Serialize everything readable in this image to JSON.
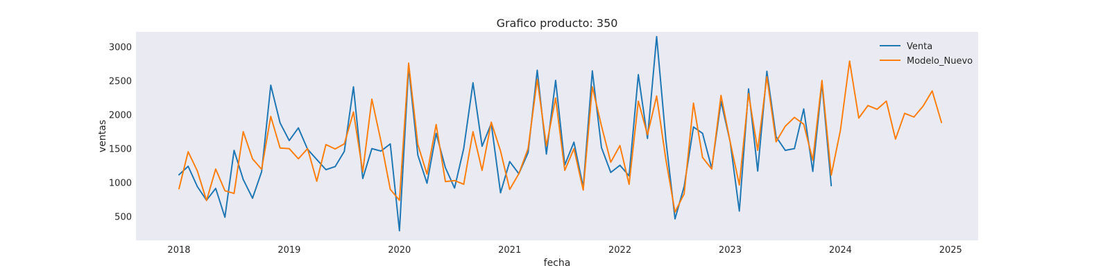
{
  "chart_data": {
    "type": "line",
    "title": "Grafico producto: 350",
    "xlabel": "fecha",
    "ylabel": "ventas",
    "xlim": [
      2017.61,
      2025.25
    ],
    "ylim": [
      150,
      3220
    ],
    "x_ticks": [
      2018,
      2019,
      2020,
      2021,
      2022,
      2023,
      2024,
      2025
    ],
    "x_tick_labels": [
      "2018",
      "2019",
      "2020",
      "2021",
      "2022",
      "2023",
      "2024",
      "2025"
    ],
    "y_ticks": [
      500,
      1000,
      1500,
      2000,
      2500,
      3000
    ],
    "y_tick_labels": [
      "500",
      "1000",
      "1500",
      "2000",
      "2500",
      "3000"
    ],
    "grid": false,
    "background": "#eaeaf2",
    "legend": "top-right",
    "series": [
      {
        "name": "Venta",
        "color": "#1f77b4",
        "x": [
          2018.0,
          2018.083,
          2018.167,
          2018.25,
          2018.333,
          2018.417,
          2018.5,
          2018.583,
          2018.667,
          2018.75,
          2018.833,
          2018.917,
          2019.0,
          2019.083,
          2019.167,
          2019.25,
          2019.333,
          2019.417,
          2019.5,
          2019.583,
          2019.667,
          2019.75,
          2019.833,
          2019.917,
          2020.0,
          2020.083,
          2020.167,
          2020.25,
          2020.333,
          2020.417,
          2020.5,
          2020.583,
          2020.667,
          2020.75,
          2020.833,
          2020.917,
          2021.0,
          2021.083,
          2021.167,
          2021.25,
          2021.333,
          2021.417,
          2021.5,
          2021.583,
          2021.667,
          2021.75,
          2021.833,
          2021.917,
          2022.0,
          2022.083,
          2022.167,
          2022.25,
          2022.333,
          2022.417,
          2022.5,
          2022.583,
          2022.667,
          2022.75,
          2022.833,
          2022.917,
          2023.0,
          2023.083,
          2023.167,
          2023.25,
          2023.333,
          2023.417,
          2023.5,
          2023.583,
          2023.667,
          2023.75,
          2023.833,
          2023.917
        ],
        "values": [
          1115,
          1240,
          940,
          740,
          915,
          490,
          1475,
          1045,
          770,
          1160,
          2435,
          1880,
          1620,
          1805,
          1490,
          1340,
          1190,
          1235,
          1460,
          2410,
          1060,
          1500,
          1465,
          1570,
          290,
          2700,
          1405,
          990,
          1725,
          1220,
          920,
          1500,
          2470,
          1535,
          1870,
          850,
          1310,
          1130,
          1440,
          2655,
          1420,
          2505,
          1260,
          1595,
          930,
          2645,
          1515,
          1150,
          1255,
          1100,
          2590,
          1650,
          3150,
          1630,
          465,
          945,
          1820,
          1725,
          1210,
          2195,
          1600,
          580,
          2380,
          1170,
          2640,
          1675,
          1475,
          1500,
          2085,
          1165,
          2465,
          955
        ]
      },
      {
        "name": "Modelo_Nuevo",
        "color": "#ff7f0e",
        "x": [
          2018.0,
          2018.083,
          2018.167,
          2018.25,
          2018.333,
          2018.417,
          2018.5,
          2018.583,
          2018.667,
          2018.75,
          2018.833,
          2018.917,
          2019.0,
          2019.083,
          2019.167,
          2019.25,
          2019.333,
          2019.417,
          2019.5,
          2019.583,
          2019.667,
          2019.75,
          2019.833,
          2019.917,
          2020.0,
          2020.083,
          2020.167,
          2020.25,
          2020.333,
          2020.417,
          2020.5,
          2020.583,
          2020.667,
          2020.75,
          2020.833,
          2020.917,
          2021.0,
          2021.083,
          2021.167,
          2021.25,
          2021.333,
          2021.417,
          2021.5,
          2021.583,
          2021.667,
          2021.75,
          2021.833,
          2021.917,
          2022.0,
          2022.083,
          2022.167,
          2022.25,
          2022.333,
          2022.417,
          2022.5,
          2022.583,
          2022.667,
          2022.75,
          2022.833,
          2022.917,
          2023.0,
          2023.083,
          2023.167,
          2023.25,
          2023.333,
          2023.417,
          2023.5,
          2023.583,
          2023.667,
          2023.75,
          2023.833,
          2023.917,
          2024.0,
          2024.083,
          2024.167,
          2024.25,
          2024.333,
          2024.417,
          2024.5,
          2024.583,
          2024.667,
          2024.75,
          2024.833,
          2024.917
        ],
        "values": [
          910,
          1455,
          1170,
          735,
          1200,
          880,
          840,
          1750,
          1350,
          1195,
          1975,
          1510,
          1500,
          1350,
          1500,
          1020,
          1560,
          1495,
          1570,
          2040,
          1160,
          2230,
          1605,
          900,
          740,
          2760,
          1560,
          1125,
          1855,
          1015,
          1030,
          975,
          1750,
          1180,
          1890,
          1465,
          900,
          1130,
          1500,
          2520,
          1540,
          2245,
          1180,
          1500,
          890,
          2410,
          1835,
          1300,
          1545,
          975,
          2200,
          1705,
          2275,
          1340,
          565,
          835,
          2170,
          1370,
          1200,
          2285,
          1600,
          965,
          2310,
          1475,
          2560,
          1600,
          1830,
          1960,
          1860,
          1330,
          2505,
          1110,
          1770,
          2790,
          1950,
          2135,
          2080,
          2200,
          1640,
          2020,
          1965,
          2125,
          2350,
          1885
        ]
      }
    ]
  }
}
